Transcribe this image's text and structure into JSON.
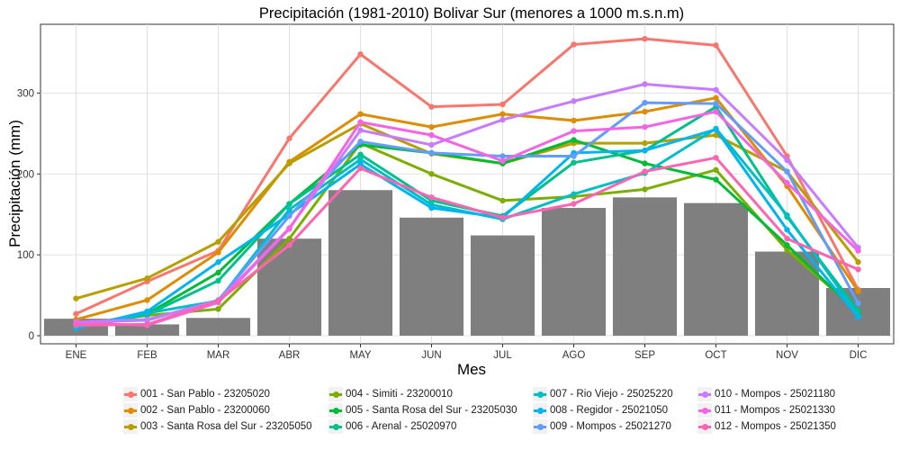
{
  "chart_data": {
    "type": "bar+line",
    "title": "Precipitación (1981-2010) Bolivar Sur (menores a 1000 m.s.n.m)",
    "xlabel": "Mes",
    "ylabel": "Precipitación (mm)",
    "ylim": [
      -10,
      385
    ],
    "yticks": [
      0,
      100,
      200,
      300
    ],
    "grid": true,
    "legend_position": "bottom",
    "categories": [
      "ENE",
      "FEB",
      "MAR",
      "ABR",
      "MAY",
      "JUN",
      "JUL",
      "AGO",
      "SEP",
      "OCT",
      "NOV",
      "DIC"
    ],
    "bars": {
      "color": "#7f7f7f",
      "values": [
        21,
        14,
        22,
        120,
        180,
        146,
        124,
        158,
        171,
        164,
        104,
        59
      ]
    },
    "series": [
      {
        "name": "001 - San Pablo - 23205020",
        "color": "#F8766D",
        "values": [
          27,
          67,
          105,
          244,
          348,
          283,
          286,
          360,
          367,
          359,
          222,
          57
        ]
      },
      {
        "name": "002 - San Pablo - 23200060",
        "color": "#DE8C00",
        "values": [
          20,
          44,
          103,
          215,
          274,
          258,
          274,
          266,
          277,
          294,
          185,
          55
        ]
      },
      {
        "name": "003 - Santa Rosa del Sur - 23205050",
        "color": "#B79F00",
        "values": [
          46,
          71,
          116,
          213,
          262,
          225,
          213,
          238,
          238,
          248,
          203,
          91
        ]
      },
      {
        "name": "004 - Simiti - 23200010",
        "color": "#7CAE00",
        "values": [
          14,
          25,
          33,
          120,
          238,
          200,
          167,
          172,
          181,
          205,
          106,
          30
        ]
      },
      {
        "name": "005 - Santa Rosa del Sur - 23205030",
        "color": "#00BA38",
        "values": [
          12,
          27,
          78,
          163,
          236,
          226,
          213,
          242,
          213,
          193,
          112,
          28
        ]
      },
      {
        "name": "006 - Arenal - 25020970",
        "color": "#00C08B",
        "values": [
          10,
          26,
          68,
          163,
          224,
          167,
          148,
          214,
          229,
          283,
          147,
          31
        ]
      },
      {
        "name": "007 - Rio Viejo - 25025220",
        "color": "#00BFC4",
        "values": [
          11,
          28,
          43,
          156,
          218,
          162,
          144,
          175,
          201,
          256,
          149,
          25
        ]
      },
      {
        "name": "008 - Regidor - 25021050",
        "color": "#00B4F0",
        "values": [
          9,
          30,
          91,
          150,
          212,
          158,
          146,
          226,
          229,
          255,
          131,
          23
        ]
      },
      {
        "name": "009 - Mompos - 25021270",
        "color": "#619CFF",
        "values": [
          17,
          19,
          44,
          148,
          240,
          226,
          222,
          222,
          288,
          287,
          203,
          40
        ]
      },
      {
        "name": "010 - Mompos - 25021180",
        "color": "#C77CFF",
        "values": [
          17,
          20,
          43,
          133,
          254,
          236,
          267,
          290,
          311,
          304,
          217,
          109
        ]
      },
      {
        "name": "011 - Mompos - 25021330",
        "color": "#F564E3",
        "values": [
          16,
          13,
          41,
          132,
          264,
          248,
          216,
          253,
          258,
          277,
          189,
          105
        ]
      },
      {
        "name": "012 - Mompos - 25021350",
        "color": "#FF64B0",
        "values": [
          13,
          14,
          43,
          112,
          207,
          171,
          146,
          163,
          203,
          220,
          120,
          82
        ]
      }
    ]
  }
}
